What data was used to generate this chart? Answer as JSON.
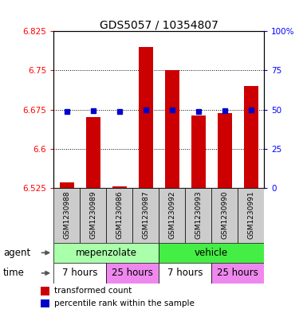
{
  "title": "GDS5057 / 10354807",
  "samples": [
    "GSM1230988",
    "GSM1230989",
    "GSM1230986",
    "GSM1230987",
    "GSM1230992",
    "GSM1230993",
    "GSM1230990",
    "GSM1230991"
  ],
  "bar_values": [
    6.535,
    6.66,
    6.527,
    6.795,
    6.75,
    6.663,
    6.668,
    6.72
  ],
  "percentile_values": [
    6.672,
    6.673,
    6.671,
    6.675,
    6.675,
    6.672,
    6.673,
    6.674
  ],
  "bar_bottom": 6.525,
  "ylim_left": [
    6.525,
    6.825
  ],
  "ylim_right": [
    0,
    100
  ],
  "yticks_left": [
    6.525,
    6.6,
    6.675,
    6.75,
    6.825
  ],
  "yticks_right": [
    0,
    25,
    50,
    75,
    100
  ],
  "ytick_labels_left": [
    "6.525",
    "6.6",
    "6.675",
    "6.75",
    "6.825"
  ],
  "ytick_labels_right": [
    "0",
    "25",
    "50",
    "75",
    "100%"
  ],
  "grid_yticks": [
    6.6,
    6.675,
    6.75
  ],
  "bar_color": "#cc0000",
  "percentile_color": "#0000cc",
  "agent_groups": [
    {
      "label": "mepenzolate",
      "start": 0,
      "end": 4,
      "color": "#aaffaa"
    },
    {
      "label": "vehicle",
      "start": 4,
      "end": 8,
      "color": "#44ee44"
    }
  ],
  "time_groups": [
    {
      "label": "7 hours",
      "start": 0,
      "end": 2,
      "color": "#ffffff"
    },
    {
      "label": "25 hours",
      "start": 2,
      "end": 4,
      "color": "#ee88ee"
    },
    {
      "label": "7 hours",
      "start": 4,
      "end": 6,
      "color": "#ffffff"
    },
    {
      "label": "25 hours",
      "start": 6,
      "end": 8,
      "color": "#ee88ee"
    }
  ],
  "legend_bar_label": "transformed count",
  "legend_pct_label": "percentile rank within the sample",
  "sample_box_color": "#cccccc",
  "row_label_agent": "agent",
  "row_label_time": "time"
}
